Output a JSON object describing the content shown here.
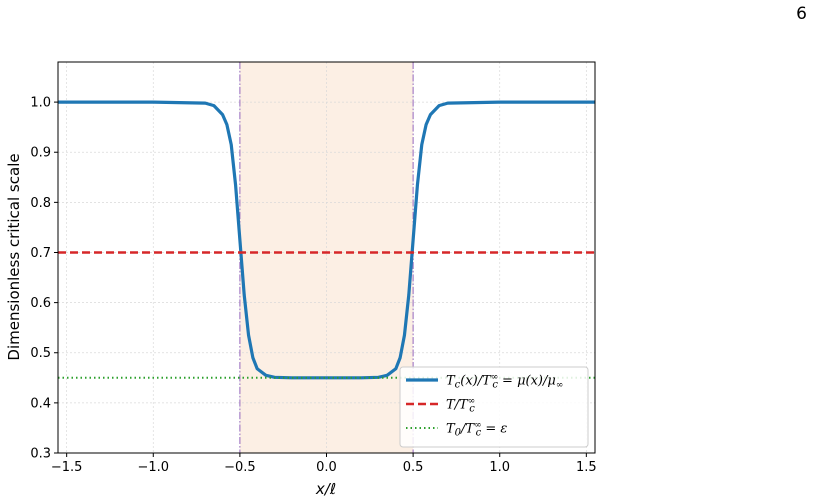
{
  "page_number": "6",
  "chart_data": {
    "type": "line",
    "title": "",
    "xlabel": "x/ℓ",
    "ylabel": "Dimensionless critical scale",
    "xlim": [
      -1.55,
      1.55
    ],
    "ylim": [
      0.3,
      1.08
    ],
    "x_ticks": [
      -1.5,
      -1.0,
      -0.5,
      0.0,
      0.5,
      1.0,
      1.5
    ],
    "x_tick_labels": [
      "−1.5",
      "−1.0",
      "−0.5",
      "0.0",
      "0.5",
      "1.0",
      "1.5"
    ],
    "y_ticks": [
      0.3,
      0.4,
      0.5,
      0.6,
      0.7,
      0.8,
      0.9,
      1.0
    ],
    "y_tick_labels": [
      "0.3",
      "0.4",
      "0.5",
      "0.6",
      "0.7",
      "0.8",
      "0.9",
      "1.0"
    ],
    "grid": true,
    "legend_position": "lower-right",
    "shaded_region": {
      "x": [
        -0.5,
        0.5
      ],
      "color": "#fcefe4"
    },
    "vertical_lines": [
      {
        "x": -0.5,
        "style": "dashdot",
        "color": "#9467bd"
      },
      {
        "x": 0.5,
        "style": "dashdot",
        "color": "#9467bd"
      }
    ],
    "series": [
      {
        "name": "T_c(x)/T_c^∞ = μ(x)/μ_∞",
        "style": "solid",
        "color": "#1f77b4",
        "x": [
          -1.55,
          -1.0,
          -0.7,
          -0.65,
          -0.6,
          -0.575,
          -0.55,
          -0.525,
          -0.5,
          -0.475,
          -0.45,
          -0.425,
          -0.4,
          -0.35,
          -0.3,
          -0.2,
          0.0,
          0.2,
          0.3,
          0.35,
          0.4,
          0.425,
          0.45,
          0.475,
          0.5,
          0.525,
          0.55,
          0.575,
          0.6,
          0.65,
          0.7,
          1.0,
          1.55
        ],
        "y": [
          1.0,
          1.0,
          0.998,
          0.993,
          0.975,
          0.955,
          0.915,
          0.835,
          0.725,
          0.615,
          0.535,
          0.49,
          0.468,
          0.455,
          0.451,
          0.45,
          0.45,
          0.45,
          0.451,
          0.455,
          0.468,
          0.49,
          0.535,
          0.615,
          0.725,
          0.835,
          0.915,
          0.955,
          0.975,
          0.993,
          0.998,
          1.0,
          1.0
        ]
      },
      {
        "name": "T/T_c^∞",
        "style": "dashed",
        "color": "#d62728",
        "x": [
          -1.55,
          1.55
        ],
        "y": [
          0.7,
          0.7
        ]
      },
      {
        "name": "T_0/T_c^∞ = ε",
        "style": "dotted",
        "color": "#2ca02c",
        "x": [
          -1.55,
          1.55
        ],
        "y": [
          0.45,
          0.45
        ]
      }
    ],
    "legend": [
      {
        "label_main": "T",
        "label_sub": "c",
        "label_rest": "(x)/T",
        "label_sup": "∞",
        "label_sub2": "c",
        "label_tail": " = μ(x)/μ",
        "label_sub3": "∞"
      },
      {
        "label_main": "T/T",
        "label_sup": "∞",
        "label_sub2": "c"
      },
      {
        "label_main": "T",
        "label_sub": "0",
        "label_rest": "/T",
        "label_sup": "∞",
        "label_sub2": "c",
        "label_tail": " = ε"
      }
    ]
  }
}
